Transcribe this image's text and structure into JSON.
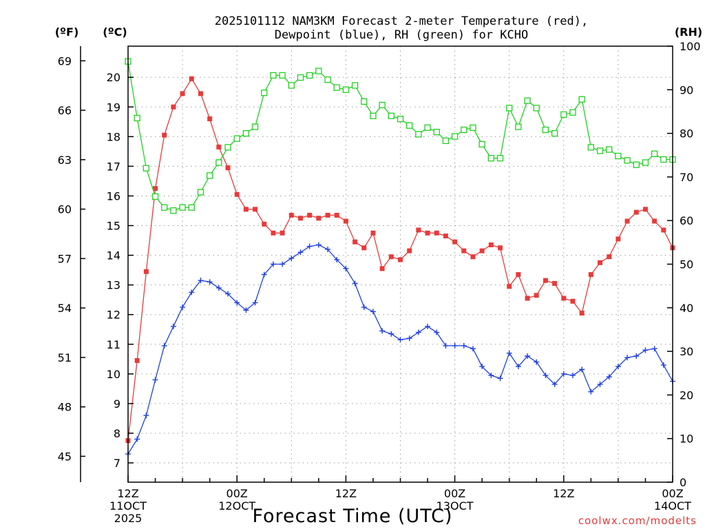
{
  "chart_data": {
    "type": "line",
    "title_lines": [
      "2025101112 NAM3KM Forecast 2-meter Temperature (red),",
      "Dewpoint (blue), RH (green) for KCHO"
    ],
    "xlabel": "Forecast Time (UTC)",
    "credit": "coolwx.com/modelts",
    "unit_labels": {
      "left_f": "(ºF)",
      "left_c": "(ºC)",
      "right_rh": "(RH)"
    },
    "xlim": [
      0,
      60
    ],
    "x_ticks": [
      {
        "x": 0,
        "label1": "12Z",
        "label2": "11OCT",
        "label3": "2025"
      },
      {
        "x": 12,
        "label1": "00Z",
        "label2": "12OCT",
        "label3": ""
      },
      {
        "x": 24,
        "label1": "12Z",
        "label2": "",
        "label3": ""
      },
      {
        "x": 36,
        "label1": "00Z",
        "label2": "13OCT",
        "label3": ""
      },
      {
        "x": 48,
        "label1": "12Z",
        "label2": "",
        "label3": ""
      },
      {
        "x": 60,
        "label1": "00Z",
        "label2": "14OCT",
        "label3": ""
      }
    ],
    "y_celsius": {
      "lim": [
        6.35,
        21.05
      ],
      "ticks": [
        7,
        8,
        9,
        10,
        11,
        12,
        13,
        14,
        15,
        16,
        17,
        18,
        19,
        20
      ]
    },
    "y_fahrenheit": {
      "ticks": [
        45,
        48,
        51,
        54,
        57,
        60,
        63,
        66,
        69
      ]
    },
    "y_rh": {
      "lim": [
        0,
        100
      ],
      "ticks": [
        0,
        10,
        20,
        30,
        40,
        50,
        60,
        70,
        80,
        90,
        100
      ]
    },
    "x": [
      0,
      1,
      2,
      3,
      4,
      5,
      6,
      7,
      8,
      9,
      10,
      11,
      12,
      13,
      14,
      15,
      16,
      17,
      18,
      19,
      20,
      21,
      22,
      23,
      24,
      25,
      26,
      27,
      28,
      29,
      30,
      31,
      32,
      33,
      34,
      35,
      36,
      37,
      38,
      39,
      40,
      41,
      42,
      43,
      44,
      45,
      46,
      47,
      48,
      49,
      50,
      51,
      52,
      53,
      54,
      55,
      56,
      57,
      58,
      59,
      60
    ],
    "series": [
      {
        "name": "2-meter Temperature (°C)",
        "color": "#e83a3a",
        "axis": "celsius",
        "marker": "filled-square",
        "values": [
          7.75,
          10.45,
          13.45,
          16.25,
          18.05,
          19.0,
          19.45,
          19.95,
          19.45,
          18.6,
          17.65,
          16.95,
          16.05,
          15.55,
          15.55,
          15.05,
          14.75,
          14.75,
          15.35,
          15.25,
          15.35,
          15.25,
          15.35,
          15.35,
          15.15,
          14.45,
          14.25,
          14.75,
          13.55,
          13.95,
          13.85,
          14.15,
          14.85,
          14.75,
          14.75,
          14.65,
          14.45,
          14.15,
          13.95,
          14.15,
          14.35,
          14.25,
          12.95,
          13.35,
          12.55,
          12.65,
          13.15,
          13.05,
          12.55,
          12.45,
          12.05,
          13.35,
          13.75,
          13.95,
          14.55,
          15.15,
          15.45,
          15.55,
          15.15,
          14.85,
          14.25
        ]
      },
      {
        "name": "Dewpoint (°C)",
        "color": "#1e3fe0",
        "axis": "celsius",
        "marker": "plus",
        "values": [
          7.3,
          7.8,
          8.6,
          9.8,
          10.95,
          11.6,
          12.25,
          12.75,
          13.15,
          13.1,
          12.9,
          12.7,
          12.4,
          12.15,
          12.4,
          13.35,
          13.7,
          13.7,
          13.9,
          14.1,
          14.3,
          14.35,
          14.2,
          13.85,
          13.55,
          13.05,
          12.25,
          12.1,
          11.45,
          11.35,
          11.15,
          11.2,
          11.4,
          11.6,
          11.4,
          10.95,
          10.95,
          10.95,
          10.85,
          10.25,
          9.95,
          9.85,
          10.7,
          10.25,
          10.6,
          10.4,
          9.95,
          9.65,
          10.0,
          9.95,
          10.15,
          9.4,
          9.65,
          9.9,
          10.25,
          10.55,
          10.6,
          10.8,
          10.85,
          10.3,
          9.75
        ]
      },
      {
        "name": "Relative Humidity (%)",
        "color": "#1fd11f",
        "axis": "rh",
        "marker": "open-square",
        "values": [
          96.5,
          83.5,
          72.0,
          65.5,
          63.0,
          62.3,
          63.0,
          63.0,
          66.5,
          70.3,
          73.3,
          76.8,
          78.8,
          80.0,
          81.5,
          89.3,
          93.3,
          93.3,
          91.0,
          92.8,
          93.3,
          94.3,
          92.3,
          90.5,
          90.0,
          91.0,
          87.3,
          84.0,
          86.5,
          84.0,
          83.3,
          81.8,
          79.8,
          81.3,
          80.3,
          78.3,
          79.3,
          80.8,
          81.3,
          77.5,
          74.3,
          74.3,
          85.8,
          81.5,
          87.5,
          85.8,
          80.8,
          80.0,
          84.3,
          84.8,
          87.8,
          76.8,
          76.0,
          76.3,
          74.8,
          73.8,
          72.8,
          73.3,
          75.3,
          74.0,
          74.0
        ]
      }
    ],
    "grid": true
  }
}
